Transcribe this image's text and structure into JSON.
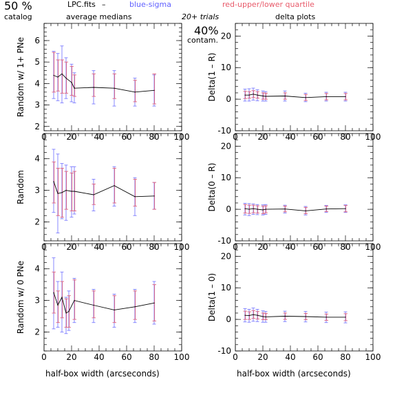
{
  "header": {
    "catalog_pct": "50 %",
    "catalog_label": "catalog",
    "file": "LPC.fits",
    "dash": "–",
    "legend_blue": "blue-sigma",
    "legend_red": "red-upper/lower quartile",
    "subtitle_left": "average medians",
    "trials": "20+ trials",
    "contam_pct": "40%",
    "contam_label": "contam.",
    "subtitle_right": "delta plots",
    "xlabel_left": "half-box width (arcseconds)",
    "xlabel_right": "half-box width (arcseconds)"
  },
  "colors": {
    "blue": "#7b7bff",
    "red": "#e0607a",
    "line": "#000000"
  },
  "chart_data": [
    {
      "id": "L0",
      "type": "line",
      "ylabel": "Random w/ 1+ PNe",
      "xlim": [
        0,
        100
      ],
      "ylim": [
        1.8,
        6.8
      ],
      "xticks": [
        0,
        20,
        40,
        60,
        80,
        100
      ],
      "yticks": [
        2,
        3,
        4,
        5,
        6
      ],
      "x": [
        7,
        10,
        13,
        16,
        20,
        22,
        36,
        51,
        66,
        80
      ],
      "y": [
        4.38,
        4.3,
        4.45,
        4.25,
        4.05,
        3.78,
        3.82,
        3.78,
        3.6,
        3.68
      ],
      "sigma": [
        [
          3.3,
          5.5
        ],
        [
          3.2,
          5.4
        ],
        [
          3.1,
          5.75
        ],
        [
          3.3,
          5.2
        ],
        [
          3.15,
          4.9
        ],
        [
          3.1,
          4.5
        ],
        [
          3.05,
          4.6
        ],
        [
          2.95,
          4.6
        ],
        [
          2.95,
          4.25
        ],
        [
          2.95,
          4.4
        ]
      ],
      "quartile": [
        [
          3.6,
          5.45
        ],
        [
          3.65,
          5.1
        ],
        [
          3.55,
          5.1
        ],
        [
          3.55,
          5.0
        ],
        [
          3.45,
          4.8
        ],
        [
          3.4,
          4.4
        ],
        [
          3.4,
          4.45
        ],
        [
          3.3,
          4.45
        ],
        [
          3.15,
          4.15
        ],
        [
          3.05,
          4.45
        ]
      ]
    },
    {
      "id": "R0",
      "type": "line",
      "ylabel": "Delta(1 – R)",
      "xlim": [
        0,
        100
      ],
      "ylim": [
        -10,
        24
      ],
      "xticks": [
        0,
        20,
        40,
        60,
        80,
        100
      ],
      "yticks": [
        -10,
        0,
        10,
        20
      ],
      "x": [
        7,
        10,
        13,
        16,
        20,
        22,
        36,
        51,
        66,
        80
      ],
      "y": [
        1.3,
        1.3,
        1.6,
        1.3,
        1.0,
        0.9,
        1.0,
        0.5,
        0.8,
        0.8
      ],
      "sigma": [
        [
          -0.6,
          3.2
        ],
        [
          -0.6,
          3.3
        ],
        [
          -0.3,
          3.5
        ],
        [
          -0.5,
          3.0
        ],
        [
          -0.6,
          2.6
        ],
        [
          -0.6,
          2.4
        ],
        [
          -0.6,
          2.6
        ],
        [
          -0.8,
          1.9
        ],
        [
          -0.6,
          2.2
        ],
        [
          -0.6,
          2.2
        ]
      ],
      "quartile": [
        [
          0.2,
          2.5
        ],
        [
          0.3,
          2.4
        ],
        [
          0.5,
          2.7
        ],
        [
          0.3,
          2.4
        ],
        [
          0.0,
          2.0
        ],
        [
          0.0,
          1.9
        ],
        [
          0.0,
          2.0
        ],
        [
          -0.4,
          1.5
        ],
        [
          -0.2,
          1.8
        ],
        [
          -0.2,
          1.8
        ]
      ]
    },
    {
      "id": "L1",
      "type": "line",
      "ylabel": "Random",
      "xlim": [
        0,
        100
      ],
      "ylim": [
        1.4,
        4.8
      ],
      "xticks": [
        0,
        20,
        40,
        60,
        80,
        100
      ],
      "yticks": [
        2,
        3,
        4
      ],
      "x": [
        7,
        10,
        13,
        16,
        20,
        22,
        36,
        51,
        66,
        80
      ],
      "y": [
        3.28,
        2.9,
        2.93,
        3.0,
        2.97,
        2.97,
        2.86,
        3.15,
        2.8,
        2.82
      ],
      "sigma": [
        [
          2.3,
          4.3
        ],
        [
          1.65,
          4.15
        ],
        [
          2.1,
          3.85
        ],
        [
          2.05,
          3.8
        ],
        [
          2.15,
          3.75
        ],
        [
          2.25,
          3.75
        ],
        [
          2.35,
          3.35
        ],
        [
          2.5,
          3.75
        ],
        [
          2.2,
          3.4
        ],
        [
          2.4,
          3.25
        ]
      ],
      "quartile": [
        [
          2.6,
          3.9
        ],
        [
          2.2,
          3.7
        ],
        [
          2.15,
          3.7
        ],
        [
          2.4,
          3.6
        ],
        [
          2.35,
          3.55
        ],
        [
          2.35,
          3.6
        ],
        [
          2.55,
          3.2
        ],
        [
          2.6,
          3.7
        ],
        [
          2.5,
          3.35
        ],
        [
          2.4,
          3.25
        ]
      ]
    },
    {
      "id": "R1",
      "type": "line",
      "ylabel": "Delta(0 – R)",
      "xlim": [
        0,
        100
      ],
      "ylim": [
        -10,
        24
      ],
      "xticks": [
        0,
        20,
        40,
        60,
        80,
        100
      ],
      "yticks": [
        -10,
        0,
        10,
        20
      ],
      "x": [
        7,
        10,
        13,
        16,
        20,
        22,
        36,
        51,
        66,
        80
      ],
      "y": [
        0.2,
        0.0,
        0.2,
        0.0,
        -0.2,
        0.0,
        0.1,
        -0.5,
        0.1,
        0.2
      ],
      "sigma": [
        [
          -1.8,
          1.9
        ],
        [
          -2.0,
          1.8
        ],
        [
          -1.6,
          1.7
        ],
        [
          -1.7,
          1.5
        ],
        [
          -1.8,
          1.4
        ],
        [
          -1.6,
          1.5
        ],
        [
          -1.2,
          1.3
        ],
        [
          -1.8,
          0.9
        ],
        [
          -1.0,
          1.2
        ],
        [
          -1.0,
          1.4
        ]
      ],
      "quartile": [
        [
          -1.2,
          1.5
        ],
        [
          -1.3,
          1.3
        ],
        [
          -1.1,
          1.3
        ],
        [
          -1.2,
          1.1
        ],
        [
          -1.4,
          1.0
        ],
        [
          -1.1,
          1.1
        ],
        [
          -0.8,
          1.0
        ],
        [
          -1.4,
          0.6
        ],
        [
          -0.7,
          1.0
        ],
        [
          -0.8,
          1.2
        ]
      ]
    },
    {
      "id": "L2",
      "type": "line",
      "ylabel": "Random w/ 0 PNe",
      "xlim": [
        0,
        100
      ],
      "ylim": [
        1.4,
        4.8
      ],
      "xticks": [
        0,
        20,
        40,
        60,
        80,
        100
      ],
      "yticks": [
        2,
        3,
        4
      ],
      "x": [
        7,
        10,
        13,
        16,
        18,
        22,
        36,
        51,
        66,
        80
      ],
      "y": [
        3.25,
        2.85,
        3.1,
        2.6,
        2.65,
        3.0,
        2.85,
        2.7,
        2.8,
        2.92
      ],
      "sigma": [
        [
          2.1,
          4.35
        ],
        [
          2.15,
          3.6
        ],
        [
          2.0,
          3.9
        ],
        [
          1.95,
          3.1
        ],
        [
          2.05,
          3.3
        ],
        [
          2.3,
          3.7
        ],
        [
          2.3,
          3.35
        ],
        [
          2.15,
          3.2
        ],
        [
          2.3,
          3.35
        ],
        [
          2.25,
          3.6
        ]
      ],
      "quartile": [
        [
          2.6,
          3.9
        ],
        [
          2.3,
          3.3
        ],
        [
          2.45,
          3.6
        ],
        [
          2.15,
          3.05
        ],
        [
          2.15,
          3.15
        ],
        [
          2.4,
          3.65
        ],
        [
          2.45,
          3.3
        ],
        [
          2.3,
          3.15
        ],
        [
          2.4,
          3.3
        ],
        [
          2.35,
          3.5
        ]
      ]
    },
    {
      "id": "R2",
      "type": "line",
      "ylabel": "Delta(1 – 0)",
      "xlim": [
        0,
        100
      ],
      "ylim": [
        -10,
        24
      ],
      "xticks": [
        0,
        20,
        40,
        60,
        80,
        100
      ],
      "yticks": [
        -10,
        0,
        10,
        20
      ],
      "x": [
        7,
        10,
        13,
        16,
        20,
        22,
        36,
        51,
        66,
        80
      ],
      "y": [
        1.3,
        1.2,
        1.5,
        1.3,
        0.9,
        0.8,
        1.0,
        0.9,
        0.7,
        0.7
      ],
      "sigma": [
        [
          -0.8,
          3.4
        ],
        [
          -0.9,
          3.2
        ],
        [
          -0.6,
          3.6
        ],
        [
          -0.7,
          3.2
        ],
        [
          -0.9,
          2.7
        ],
        [
          -0.9,
          2.5
        ],
        [
          -0.7,
          2.6
        ],
        [
          -0.8,
          2.5
        ],
        [
          -1.0,
          2.3
        ],
        [
          -1.1,
          2.4
        ]
      ],
      "quartile": [
        [
          0.0,
          2.6
        ],
        [
          0.0,
          2.4
        ],
        [
          0.3,
          2.8
        ],
        [
          0.1,
          2.5
        ],
        [
          -0.1,
          2.0
        ],
        [
          -0.1,
          1.9
        ],
        [
          0.0,
          2.0
        ],
        [
          -0.1,
          1.9
        ],
        [
          -0.3,
          1.7
        ],
        [
          -0.4,
          1.8
        ]
      ]
    }
  ]
}
